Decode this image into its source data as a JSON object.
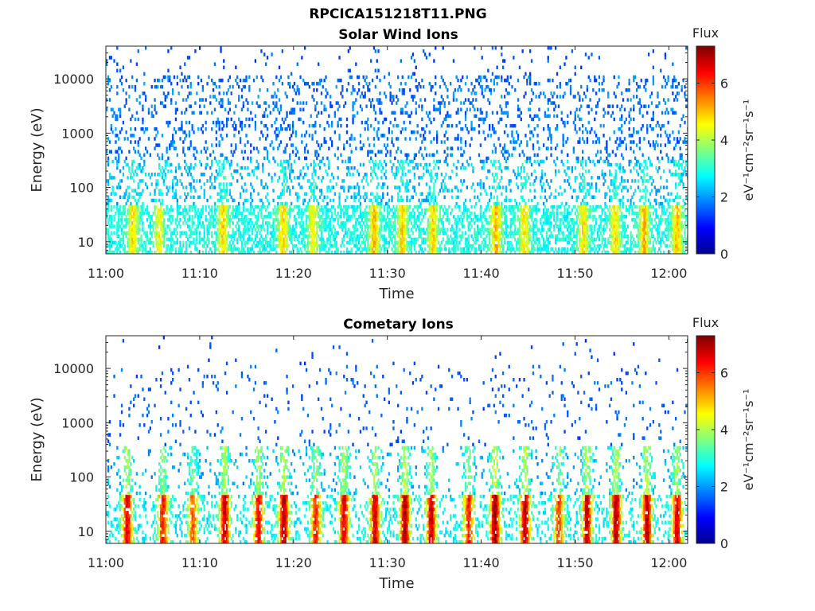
{
  "figure_title": "RPCICA151218T11.PNG",
  "colors": {
    "colormap": [
      "#00008f",
      "#0000ff",
      "#0080ff",
      "#00ffff",
      "#80ff80",
      "#ffff00",
      "#ff8000",
      "#ff0000",
      "#800000"
    ],
    "axis": "#262626",
    "background": "#ffffff"
  },
  "chart_data": [
    {
      "type": "heatmap",
      "title": "Solar Wind Ions",
      "xlabel": "Time",
      "ylabel": "Energy (eV)",
      "x_ticks": [
        "11:00",
        "11:10",
        "11:20",
        "11:30",
        "11:40",
        "11:50",
        "12:00"
      ],
      "y_ticks": [
        "10",
        "100",
        "1000",
        "10000"
      ],
      "y_scale": "log",
      "x_range": [
        "11:00",
        "12:02"
      ],
      "y_range": [
        6,
        40000
      ],
      "colorbar": {
        "title": "Flux",
        "label": "eV⁻¹cm⁻²sr⁻¹s⁻¹",
        "ticks": [
          "0",
          "2",
          "4",
          "6"
        ],
        "range": [
          0,
          7.3
        ]
      },
      "profile": "solar",
      "bursts": [
        {
          "time_min": 2.8,
          "level": 4.2
        },
        {
          "time_min": 5.6,
          "level": 3.6
        },
        {
          "time_min": 12.4,
          "level": 4.4
        },
        {
          "time_min": 18.8,
          "level": 4.3
        },
        {
          "time_min": 22.0,
          "level": 3.6
        },
        {
          "time_min": 28.5,
          "level": 4.8
        },
        {
          "time_min": 31.5,
          "level": 4.5
        },
        {
          "time_min": 34.8,
          "level": 4.2
        },
        {
          "time_min": 41.5,
          "level": 4.8
        },
        {
          "time_min": 44.5,
          "level": 3.9
        },
        {
          "time_min": 50.8,
          "level": 4.0
        },
        {
          "time_min": 54.2,
          "level": 4.2
        },
        {
          "time_min": 57.3,
          "level": 4.9
        },
        {
          "time_min": 60.8,
          "level": 4.6
        }
      ]
    },
    {
      "type": "heatmap",
      "title": "Cometary Ions",
      "xlabel": "Time",
      "ylabel": "Energy (eV)",
      "x_ticks": [
        "11:00",
        "11:10",
        "11:20",
        "11:30",
        "11:40",
        "11:50",
        "12:00"
      ],
      "y_ticks": [
        "10",
        "100",
        "1000",
        "10000"
      ],
      "y_scale": "log",
      "x_range": [
        "11:00",
        "12:02"
      ],
      "y_range": [
        6,
        40000
      ],
      "colorbar": {
        "title": "Flux",
        "label": "eV⁻¹cm⁻²sr⁻¹s⁻¹",
        "ticks": [
          "0",
          "2",
          "4",
          "6"
        ],
        "range": [
          0,
          7.3
        ]
      },
      "profile": "cometary",
      "bursts": [
        {
          "time_min": 2.2,
          "level": 6.3
        },
        {
          "time_min": 6.0,
          "level": 5.8
        },
        {
          "time_min": 9.2,
          "level": 5.0
        },
        {
          "time_min": 12.6,
          "level": 6.6
        },
        {
          "time_min": 16.2,
          "level": 6.1
        },
        {
          "time_min": 18.9,
          "level": 6.8
        },
        {
          "time_min": 22.3,
          "level": 5.6
        },
        {
          "time_min": 25.3,
          "level": 6.3
        },
        {
          "time_min": 28.6,
          "level": 6.5
        },
        {
          "time_min": 31.8,
          "level": 7.0
        },
        {
          "time_min": 34.6,
          "level": 6.6
        },
        {
          "time_min": 38.6,
          "level": 5.6
        },
        {
          "time_min": 41.4,
          "level": 7.1
        },
        {
          "time_min": 44.6,
          "level": 6.7
        },
        {
          "time_min": 48.2,
          "level": 5.3
        },
        {
          "time_min": 51.2,
          "level": 6.6
        },
        {
          "time_min": 54.3,
          "level": 6.9
        },
        {
          "time_min": 57.6,
          "level": 6.7
        },
        {
          "time_min": 60.8,
          "level": 6.4
        }
      ]
    }
  ]
}
